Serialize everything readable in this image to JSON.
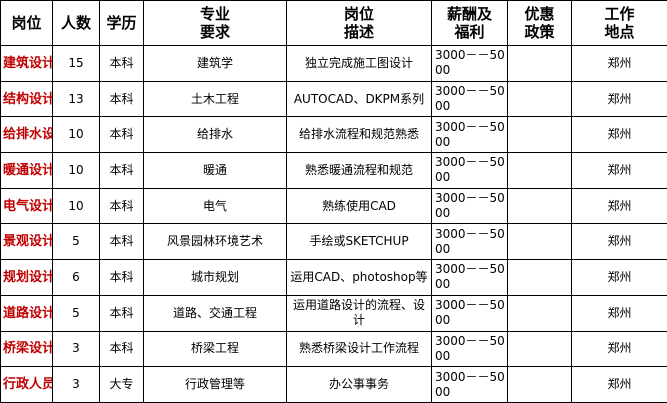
{
  "table": {
    "header": [
      [
        "岗位"
      ],
      [
        "人数"
      ],
      [
        "学历"
      ],
      [
        "专业",
        "要求"
      ],
      [
        "岗位",
        "描述"
      ],
      [
        "薪酬及",
        "福利"
      ],
      [
        "优惠",
        "政策"
      ],
      [
        "工作",
        "地点"
      ]
    ],
    "rows": [
      [
        "建筑设计",
        "15",
        "本科",
        "建筑学",
        "独立完成施工图设计",
        "3000－－5000",
        "",
        "郑州"
      ],
      [
        "结构设计",
        "13",
        "本科",
        "土木工程",
        "AUTOCAD、DKPM系列",
        "3000－－5000",
        "",
        "郑州"
      ],
      [
        "给排水设计",
        "10",
        "本科",
        "给排水",
        "给排水流程和规范熟悉",
        "3000－－5000",
        "",
        "郑州"
      ],
      [
        "暖通设计",
        "10",
        "本科",
        "暖通",
        "熟悉暖通流程和规范",
        "3000－－5000",
        "",
        "郑州"
      ],
      [
        "电气设计",
        "10",
        "本科",
        "电气",
        "熟练使用CAD",
        "3000－－5000",
        "",
        "郑州"
      ],
      [
        "景观设计",
        "5",
        "本科",
        "风景园林环境艺术",
        "手绘或SKETCHUP",
        "3000－－5000",
        "",
        "郑州"
      ],
      [
        "规划设计",
        "6",
        "本科",
        "城市规划",
        "运用CAD、photoshop等",
        "3000－－5000",
        "",
        "郑州"
      ],
      [
        "道路设计",
        "5",
        "本科",
        "道路、交通工程",
        "运用道路设计的流程、设计",
        "3000－－5000",
        "",
        "郑州"
      ],
      [
        "桥梁设计",
        "3",
        "本科",
        "桥梁工程",
        "熟悉桥梁设计工作流程",
        "3000－－5000",
        "",
        "郑州"
      ],
      [
        "行政人员",
        "3",
        "大专",
        "行政管理等",
        "办公事事务",
        "3000－－5000",
        "",
        "郑州"
      ]
    ]
  }
}
